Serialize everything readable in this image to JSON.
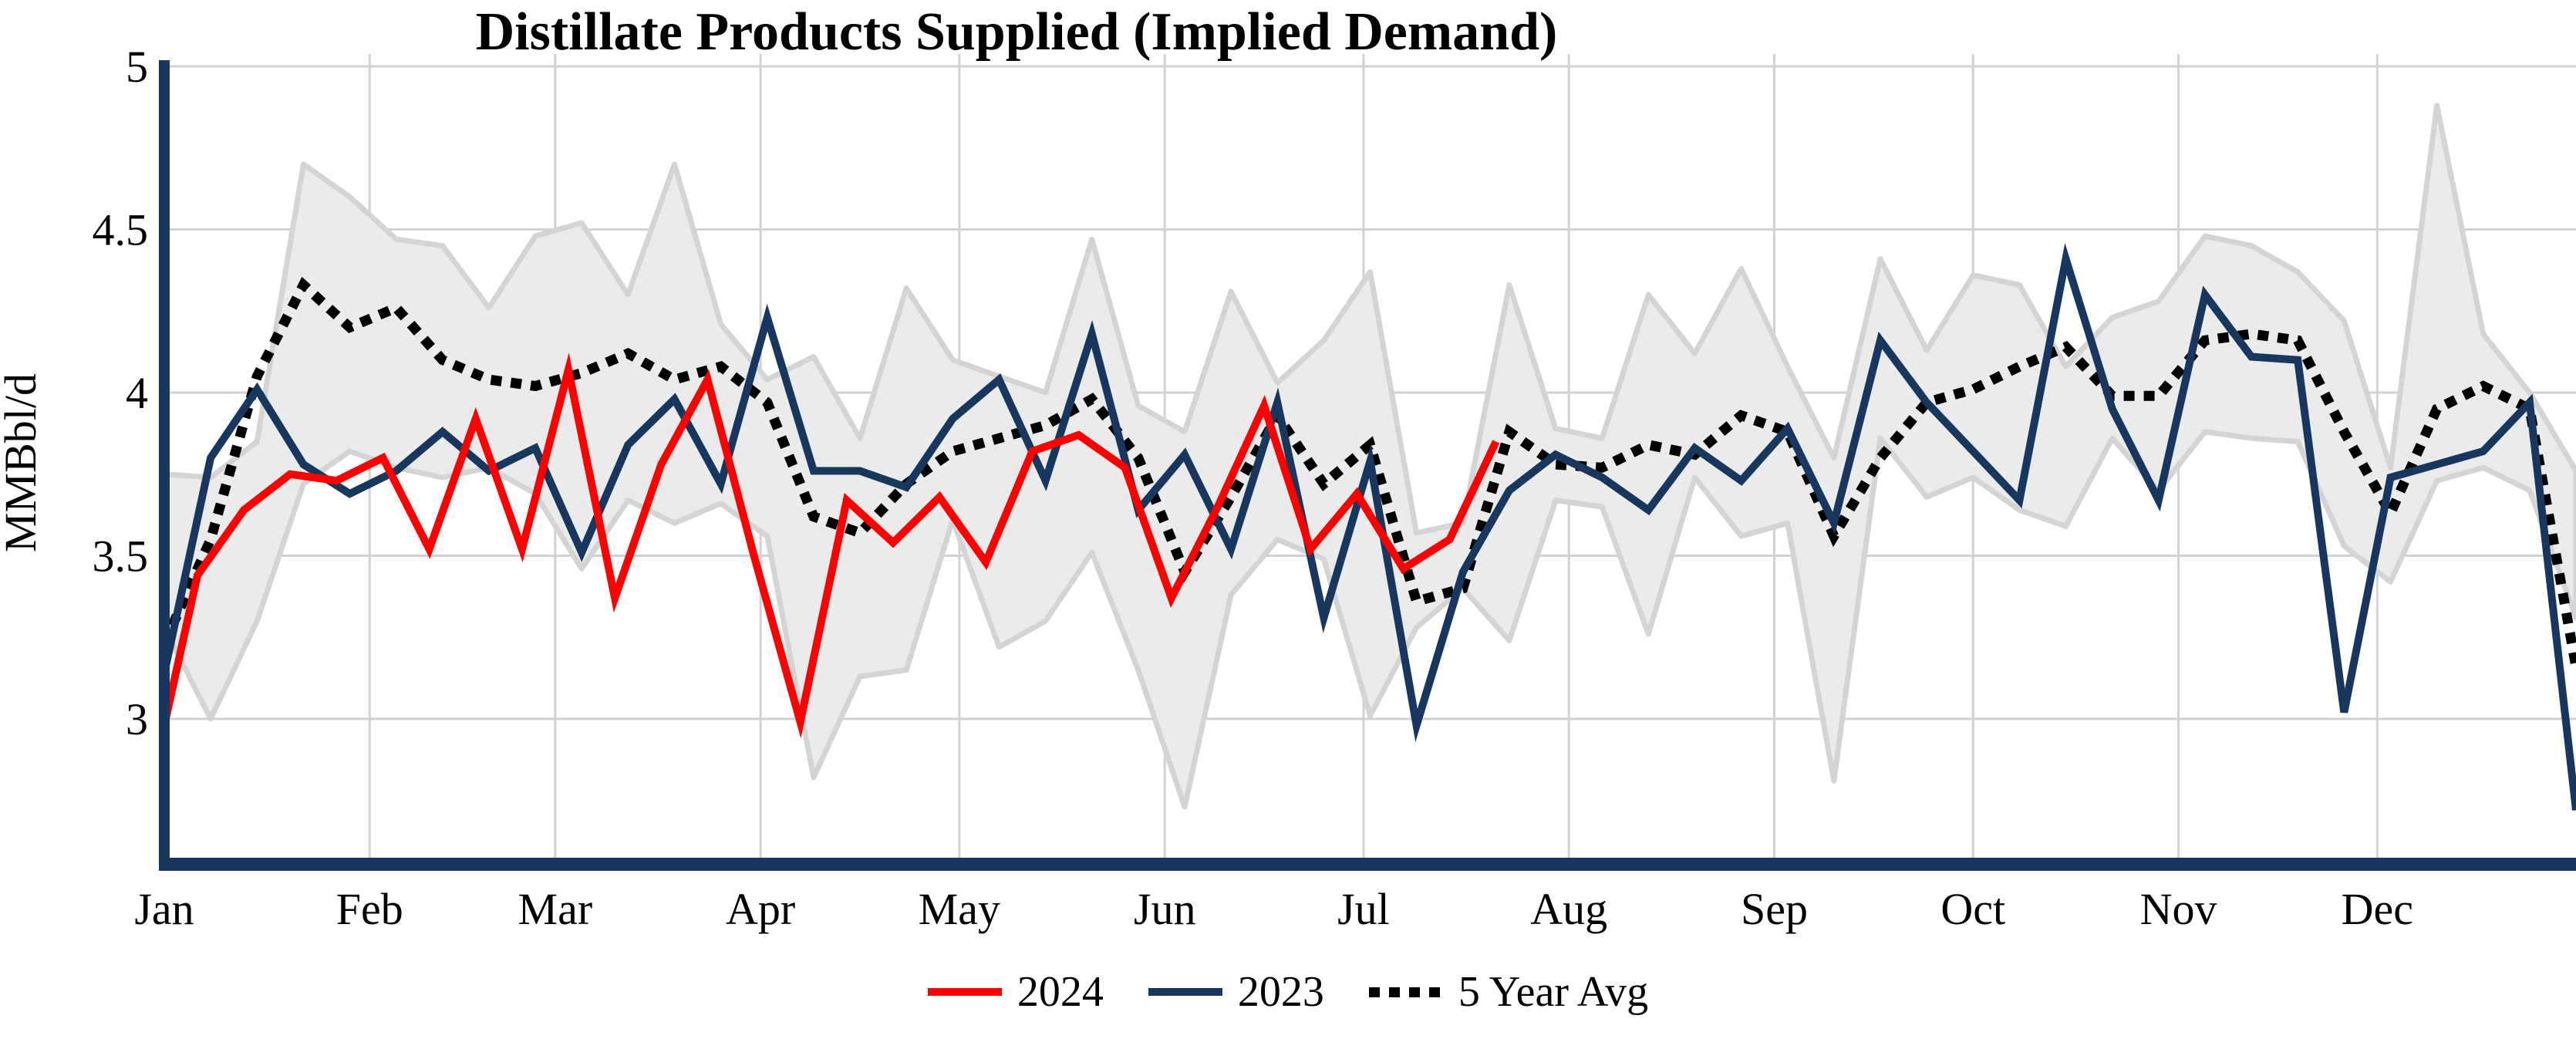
{
  "title": "Distillate Products Supplied (Implied Demand)",
  "y_axis": {
    "label": "MMBbl/d",
    "ticks": [
      5,
      4.5,
      4,
      3.5,
      3
    ],
    "range_bottom": 2.57,
    "range_top": 5
  },
  "x_axis": {
    "months": [
      "Jan",
      "Feb",
      "Mar",
      "Apr",
      "May",
      "Jun",
      "Jul",
      "Aug",
      "Sep",
      "Oct",
      "Nov",
      "Dec"
    ],
    "month_start_days": [
      0,
      31,
      59,
      90,
      120,
      151,
      181,
      212,
      243,
      273,
      304,
      334
    ],
    "total_days": 364
  },
  "legend": {
    "items": [
      {
        "label": "2024",
        "color": "#FF0000",
        "style": "solid"
      },
      {
        "label": "2023",
        "color": "#17375E",
        "style": "solid"
      },
      {
        "label": "5 Year Avg",
        "color": "#000000",
        "style": "dotted"
      }
    ]
  },
  "colors": {
    "series_2024": "#FF0000",
    "series_2023": "#17375E",
    "five_year_avg": "#000000",
    "band_fill": "#EBEBEB",
    "band_edge": "#D4D4D4",
    "gridline": "#D2D2D2",
    "axis_spine": "#17375E",
    "text": "#000000"
  },
  "chart_data": {
    "type": "line",
    "title": "Distillate Products Supplied (Implied Demand)",
    "xlabel": "",
    "ylabel": "MMBbl/d",
    "x_unit": "day-of-year (weekly data)",
    "ylim": [
      2.57,
      5.0
    ],
    "grid": true,
    "legend_position": "bottom-center",
    "band": {
      "name": "5-Year Range",
      "days": [
        0,
        7,
        14,
        21,
        28,
        35,
        42,
        49,
        56,
        63,
        70,
        77,
        84,
        91,
        98,
        105,
        112,
        119,
        126,
        133,
        140,
        147,
        154,
        161,
        168,
        175,
        182,
        189,
        196,
        203,
        210,
        217,
        224,
        231,
        238,
        245,
        252,
        259,
        266,
        273,
        280,
        287,
        294,
        301,
        308,
        315,
        322,
        329,
        336,
        343,
        350,
        357,
        364
      ],
      "max": [
        3.75,
        3.74,
        3.85,
        4.7,
        4.6,
        4.47,
        4.45,
        4.26,
        4.48,
        4.52,
        4.3,
        4.7,
        4.21,
        4.04,
        4.11,
        3.86,
        4.32,
        4.1,
        4.05,
        4.0,
        4.47,
        3.96,
        3.88,
        4.31,
        4.03,
        4.16,
        4.37,
        3.57,
        3.6,
        4.33,
        3.89,
        3.86,
        4.3,
        4.12,
        4.38,
        4.08,
        3.8,
        4.41,
        4.13,
        4.36,
        4.33,
        4.08,
        4.23,
        4.28,
        4.48,
        4.45,
        4.37,
        4.22,
        3.77,
        4.88,
        4.18,
        4.0,
        3.76
      ],
      "min": [
        3.28,
        3.0,
        3.3,
        3.72,
        3.82,
        3.77,
        3.74,
        3.77,
        3.69,
        3.46,
        3.67,
        3.6,
        3.66,
        3.56,
        2.82,
        3.13,
        3.15,
        3.61,
        3.22,
        3.3,
        3.51,
        3.15,
        2.73,
        3.38,
        3.55,
        3.49,
        3.01,
        3.28,
        3.4,
        3.24,
        3.67,
        3.65,
        3.26,
        3.74,
        3.56,
        3.6,
        2.81,
        3.86,
        3.68,
        3.74,
        3.64,
        3.59,
        3.86,
        3.7,
        3.88,
        3.86,
        3.85,
        3.53,
        3.42,
        3.73,
        3.77,
        3.7,
        3.31
      ]
    },
    "series": [
      {
        "name": "2024",
        "days": [
          0,
          5,
          12,
          19,
          26,
          33,
          40,
          47,
          54,
          61,
          68,
          75,
          82,
          89,
          96,
          103,
          110,
          117,
          124,
          131,
          138,
          145,
          152,
          159,
          166,
          173,
          180,
          187,
          194,
          201
        ],
        "values": [
          2.98,
          3.44,
          3.64,
          3.75,
          3.73,
          3.8,
          3.52,
          3.92,
          3.52,
          4.07,
          3.37,
          3.78,
          4.04,
          3.5,
          2.99,
          3.67,
          3.54,
          3.68,
          3.48,
          3.82,
          3.87,
          3.77,
          3.37,
          3.65,
          3.96,
          3.52,
          3.69,
          3.46,
          3.55,
          3.85
        ]
      },
      {
        "name": "2023",
        "days": [
          0,
          7,
          14,
          21,
          28,
          35,
          42,
          49,
          56,
          63,
          70,
          77,
          84,
          91,
          98,
          105,
          112,
          119,
          126,
          133,
          140,
          147,
          154,
          161,
          168,
          175,
          182,
          189,
          196,
          203,
          210,
          217,
          224,
          231,
          238,
          245,
          252,
          259,
          266,
          273,
          280,
          287,
          294,
          301,
          308,
          315,
          322,
          329,
          336,
          343,
          350,
          357,
          364
        ],
        "values": [
          3.14,
          3.8,
          4.01,
          3.78,
          3.69,
          3.76,
          3.88,
          3.76,
          3.83,
          3.51,
          3.84,
          3.98,
          3.72,
          4.23,
          3.76,
          3.76,
          3.71,
          3.92,
          4.04,
          3.73,
          4.18,
          3.64,
          3.81,
          3.52,
          3.97,
          3.31,
          3.79,
          2.98,
          3.45,
          3.7,
          3.81,
          3.74,
          3.64,
          3.83,
          3.73,
          3.89,
          3.6,
          4.16,
          3.97,
          3.82,
          3.67,
          4.41,
          3.95,
          3.67,
          4.3,
          4.11,
          4.1,
          3.02,
          3.74,
          3.78,
          3.82,
          3.97,
          2.72
        ]
      },
      {
        "name": "5 Year Avg",
        "days": [
          0,
          7,
          14,
          21,
          28,
          35,
          42,
          49,
          56,
          63,
          70,
          77,
          84,
          91,
          98,
          105,
          112,
          119,
          126,
          133,
          140,
          147,
          154,
          161,
          168,
          175,
          182,
          189,
          196,
          203,
          210,
          217,
          224,
          231,
          238,
          245,
          252,
          259,
          266,
          273,
          280,
          287,
          294,
          301,
          308,
          315,
          322,
          329,
          336,
          343,
          350,
          357,
          364
        ],
        "values": [
          3.23,
          3.55,
          4.05,
          4.33,
          4.2,
          4.26,
          4.1,
          4.04,
          4.02,
          4.06,
          4.12,
          4.04,
          4.08,
          3.97,
          3.62,
          3.57,
          3.72,
          3.82,
          3.86,
          3.9,
          3.98,
          3.8,
          3.45,
          3.68,
          3.93,
          3.72,
          3.84,
          3.36,
          3.4,
          3.88,
          3.78,
          3.77,
          3.84,
          3.81,
          3.93,
          3.88,
          3.56,
          3.8,
          3.97,
          4.01,
          4.08,
          4.14,
          3.99,
          3.99,
          4.16,
          4.18,
          4.16,
          3.88,
          3.63,
          3.95,
          4.02,
          3.95,
          3.16
        ]
      }
    ]
  }
}
